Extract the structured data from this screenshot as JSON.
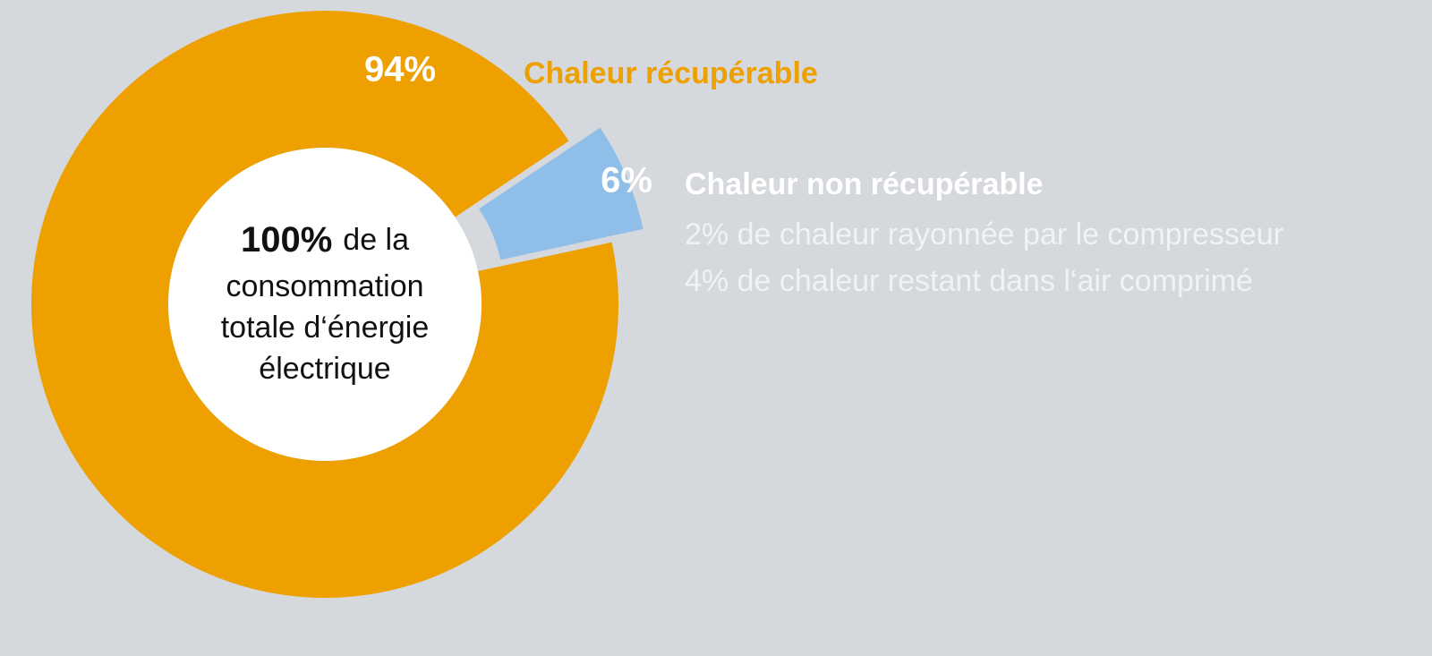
{
  "chart_data": {
    "type": "donut",
    "categories": [
      "Chaleur récupérable",
      "Chaleur non récupérable"
    ],
    "values": [
      94,
      6
    ],
    "value_labels": [
      "94%",
      "6%"
    ],
    "colors": [
      "#eda000",
      "#8fbfe9"
    ],
    "center_text": {
      "value_label": "100%",
      "lines": [
        "de la",
        "consommation",
        "totale d‘énergie",
        "électrique"
      ]
    },
    "notes": [
      "2% de chaleur rayonnée par le compresseur",
      "4% de chaleur restant dans l‘air comprimé"
    ]
  }
}
